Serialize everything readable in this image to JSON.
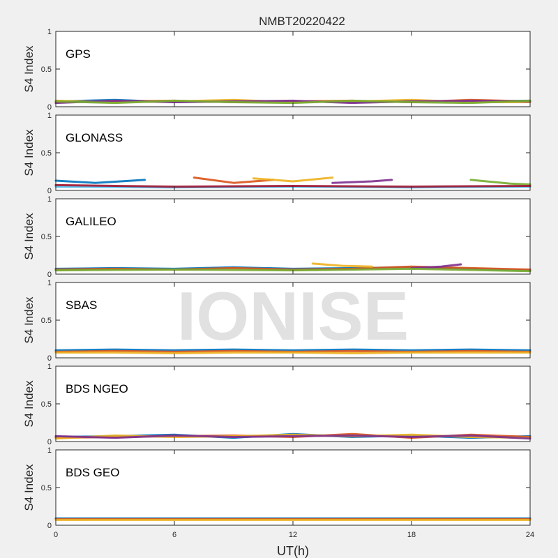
{
  "figure": {
    "title": "NMBT20220422",
    "xlabel": "UT(h)",
    "watermark": "IONISE",
    "background": "#f0f0f0"
  },
  "chart_data": {
    "type": "line",
    "title": "NMBT20220422",
    "xlabel": "UT(h)",
    "ylabel": "S4 Index",
    "xlim": [
      0,
      24
    ],
    "ylim": [
      0,
      1
    ],
    "xticks": [
      "0",
      "6",
      "12",
      "18",
      "24"
    ],
    "yticks": [
      "0",
      "0.5",
      "1"
    ],
    "grid": false,
    "series_colors": [
      "#0072BD",
      "#D95319",
      "#EDB120",
      "#7E2F8E",
      "#77AC30",
      "#4DBEEE",
      "#A2142F"
    ],
    "panels": [
      {
        "label": "GPS",
        "series": [
          {
            "x": [
              0,
              3,
              6,
              9,
              12,
              15,
              18,
              21,
              24
            ],
            "y": [
              0.07,
              0.09,
              0.06,
              0.08,
              0.07,
              0.06,
              0.08,
              0.07,
              0.08
            ]
          },
          {
            "x": [
              0,
              3,
              6,
              9,
              12,
              15,
              18,
              21,
              24
            ],
            "y": [
              0.06,
              0.07,
              0.08,
              0.06,
              0.07,
              0.08,
              0.06,
              0.09,
              0.07
            ]
          },
          {
            "x": [
              0,
              3,
              6,
              9,
              12,
              15,
              18,
              21,
              24
            ],
            "y": [
              0.08,
              0.06,
              0.07,
              0.09,
              0.06,
              0.07,
              0.09,
              0.06,
              0.06
            ]
          },
          {
            "x": [
              0,
              3,
              6,
              9,
              12,
              15,
              18,
              21,
              24
            ],
            "y": [
              0.05,
              0.08,
              0.06,
              0.07,
              0.08,
              0.05,
              0.07,
              0.08,
              0.07
            ]
          },
          {
            "x": [
              0,
              3,
              6,
              9,
              12,
              15,
              18,
              21,
              24
            ],
            "y": [
              0.07,
              0.05,
              0.08,
              0.06,
              0.05,
              0.08,
              0.06,
              0.05,
              0.08
            ]
          }
        ]
      },
      {
        "label": "GLONASS",
        "series": [
          {
            "x": [
              0,
              2,
              4.5
            ],
            "y": [
              0.13,
              0.1,
              0.14
            ]
          },
          {
            "x": [
              7,
              9,
              11
            ],
            "y": [
              0.17,
              0.1,
              0.14
            ]
          },
          {
            "x": [
              10,
              12,
              14
            ],
            "y": [
              0.16,
              0.12,
              0.17
            ]
          },
          {
            "x": [
              14,
              16,
              17
            ],
            "y": [
              0.1,
              0.12,
              0.14
            ]
          },
          {
            "x": [
              21,
              23,
              24
            ],
            "y": [
              0.14,
              0.09,
              0.08
            ]
          },
          {
            "x": [
              0,
              6,
              12,
              18,
              24
            ],
            "y": [
              0.05,
              0.04,
              0.05,
              0.04,
              0.05
            ]
          },
          {
            "x": [
              0,
              6,
              12,
              18,
              24
            ],
            "y": [
              0.07,
              0.05,
              0.06,
              0.05,
              0.06
            ]
          }
        ]
      },
      {
        "label": "GALILEO",
        "series": [
          {
            "x": [
              0,
              3,
              6,
              9,
              12,
              15,
              18,
              21,
              24
            ],
            "y": [
              0.07,
              0.08,
              0.07,
              0.09,
              0.07,
              0.08,
              0.09,
              0.07,
              0.05
            ]
          },
          {
            "x": [
              0,
              3,
              6,
              9,
              12,
              15,
              18,
              21,
              24
            ],
            "y": [
              0.06,
              0.07,
              0.06,
              0.08,
              0.06,
              0.07,
              0.1,
              0.08,
              0.06
            ]
          },
          {
            "x": [
              13,
              14.5,
              16
            ],
            "y": [
              0.14,
              0.11,
              0.1
            ]
          },
          {
            "x": [
              18,
              19.5,
              20.5
            ],
            "y": [
              0.08,
              0.1,
              0.13
            ]
          },
          {
            "x": [
              0,
              6,
              12,
              18,
              24
            ],
            "y": [
              0.05,
              0.06,
              0.05,
              0.07,
              0.04
            ]
          }
        ]
      },
      {
        "label": "SBAS",
        "series": [
          {
            "x": [
              0,
              3,
              6,
              9,
              12,
              15,
              18,
              21,
              24
            ],
            "y": [
              0.1,
              0.11,
              0.1,
              0.11,
              0.1,
              0.11,
              0.1,
              0.11,
              0.1
            ]
          },
          {
            "x": [
              0,
              3,
              6,
              9,
              12,
              15,
              18,
              21,
              24
            ],
            "y": [
              0.08,
              0.09,
              0.08,
              0.09,
              0.08,
              0.09,
              0.08,
              0.09,
              0.08
            ]
          },
          {
            "x": [
              0,
              3,
              6,
              9,
              12,
              15,
              18,
              21,
              24
            ],
            "y": [
              0.07,
              0.07,
              0.06,
              0.07,
              0.07,
              0.06,
              0.07,
              0.07,
              0.07
            ]
          }
        ]
      },
      {
        "label": "BDS NGEO",
        "series": [
          {
            "x": [
              0,
              3,
              6,
              9,
              12,
              15,
              18,
              21,
              24
            ],
            "y": [
              0.06,
              0.07,
              0.09,
              0.05,
              0.1,
              0.06,
              0.08,
              0.05,
              0.07
            ]
          },
          {
            "x": [
              0,
              3,
              6,
              9,
              12,
              15,
              18,
              21,
              24
            ],
            "y": [
              0.05,
              0.06,
              0.07,
              0.08,
              0.06,
              0.1,
              0.05,
              0.09,
              0.06
            ]
          },
          {
            "x": [
              0,
              3,
              6,
              9,
              12,
              15,
              18,
              21,
              24
            ],
            "y": [
              0.04,
              0.08,
              0.06,
              0.07,
              0.09,
              0.07,
              0.09,
              0.06,
              0.05
            ]
          },
          {
            "x": [
              0,
              3,
              6,
              9,
              12,
              15,
              18,
              21,
              24
            ],
            "y": [
              0.07,
              0.05,
              0.08,
              0.06,
              0.07,
              0.08,
              0.06,
              0.08,
              0.04
            ]
          }
        ]
      },
      {
        "label": "BDS GEO",
        "series": [
          {
            "x": [
              0,
              6,
              12,
              18,
              24
            ],
            "y": [
              0.09,
              0.09,
              0.09,
              0.09,
              0.09
            ]
          },
          {
            "x": [
              0,
              6,
              12,
              18,
              24
            ],
            "y": [
              0.08,
              0.08,
              0.08,
              0.08,
              0.08
            ]
          },
          {
            "x": [
              0,
              6,
              12,
              18,
              24
            ],
            "y": [
              0.07,
              0.07,
              0.07,
              0.07,
              0.07
            ]
          }
        ]
      }
    ]
  }
}
